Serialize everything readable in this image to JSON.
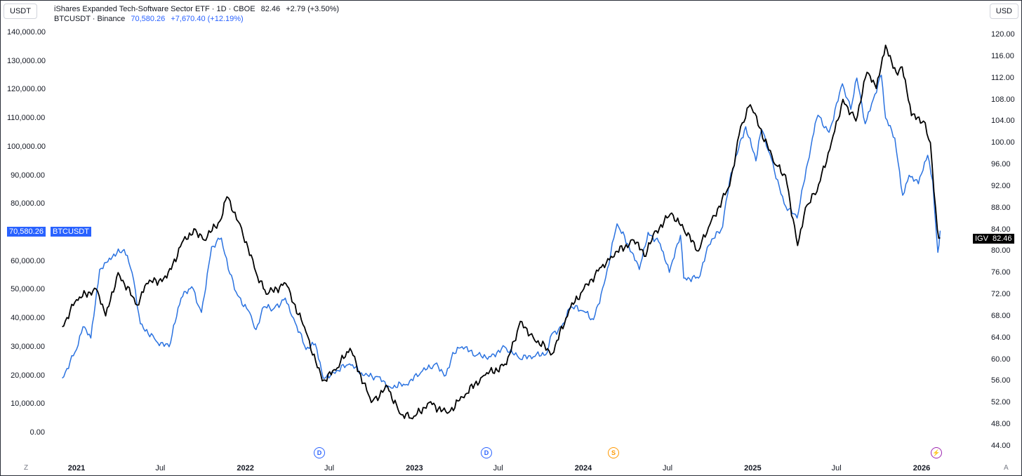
{
  "header": {
    "left_unit": "USDT",
    "right_unit": "USD",
    "series1_title": "iShares Expanded Tech-Software Sector ETF · 1D · CBOE",
    "series1_price": "82.46",
    "series1_change": "+2.79 (+3.50%)",
    "series2_title": "BTCUSDT · Binance",
    "series2_price": "70,580.26",
    "series2_change": "+7,670.40 (+12.19%)"
  },
  "axes": {
    "left_ticks": [
      "140,000.00",
      "130,000.00",
      "120,000.00",
      "110,000.00",
      "100,000.00",
      "90,000.00",
      "80,000.00",
      "60,000.00",
      "50,000.00",
      "40,000.00",
      "30,000.00",
      "20,000.00",
      "10,000.00",
      "0.00"
    ],
    "right_ticks": [
      "120.00",
      "116.00",
      "112.00",
      "108.00",
      "104.00",
      "100.00",
      "96.00",
      "92.00",
      "88.00",
      "84.00",
      "80.00",
      "76.00",
      "72.00",
      "68.00",
      "64.00",
      "60.00",
      "56.00",
      "52.00",
      "48.00",
      "44.00"
    ],
    "x_labels": [
      "2021",
      "Jul",
      "2022",
      "Jul",
      "2023",
      "Jul",
      "2024",
      "Jul",
      "2025",
      "Jul",
      "2026"
    ],
    "corner_left": "Z",
    "corner_right": "A"
  },
  "price_tags": {
    "btc_value": "70,580.26",
    "btc_symbol": "BTCUSDT",
    "igv_symbol": "IGV",
    "igv_value": "82.46"
  },
  "events": [
    {
      "letter": "D",
      "color": "#2962ff"
    },
    {
      "letter": "D",
      "color": "#2962ff"
    },
    {
      "letter": "S",
      "color": "#ff9800"
    },
    {
      "letter": "⚡",
      "color": "#9c27b0"
    }
  ],
  "colors": {
    "btc": "#2a72e0",
    "igv": "#000000"
  },
  "chart_data": {
    "type": "line",
    "xlim": [
      "2020-12",
      "2026-03"
    ],
    "series": [
      {
        "name": "BTCUSDT",
        "axis": "left",
        "x": [
          "2020-12-01",
          "2021-01-01",
          "2021-01-15",
          "2021-02-01",
          "2021-02-20",
          "2021-03-13",
          "2021-04-14",
          "2021-05-01",
          "2021-05-19",
          "2021-06-22",
          "2021-07-20",
          "2021-08-15",
          "2021-09-07",
          "2021-09-28",
          "2021-10-20",
          "2021-11-10",
          "2021-11-25",
          "2021-12-15",
          "2022-01-10",
          "2022-01-24",
          "2022-02-10",
          "2022-03-01",
          "2022-03-28",
          "2022-04-15",
          "2022-05-12",
          "2022-06-01",
          "2022-06-18",
          "2022-07-10",
          "2022-08-14",
          "2022-09-15",
          "2022-10-15",
          "2022-11-09",
          "2022-12-15",
          "2023-01-15",
          "2023-02-15",
          "2023-03-10",
          "2023-03-25",
          "2023-04-14",
          "2023-05-15",
          "2023-06-15",
          "2023-07-15",
          "2023-08-15",
          "2023-09-15",
          "2023-10-15",
          "2023-10-25",
          "2023-11-15",
          "2023-12-05",
          "2024-01-01",
          "2024-01-23",
          "2024-02-15",
          "2024-03-14",
          "2024-04-15",
          "2024-05-01",
          "2024-05-20",
          "2024-06-15",
          "2024-07-05",
          "2024-07-29",
          "2024-08-05",
          "2024-09-06",
          "2024-09-28",
          "2024-10-28",
          "2024-11-12",
          "2024-12-05",
          "2024-12-17",
          "2025-01-08",
          "2025-01-20",
          "2025-02-10",
          "2025-03-10",
          "2025-04-07",
          "2025-05-10",
          "2025-05-22",
          "2025-06-15",
          "2025-07-14",
          "2025-08-01",
          "2025-08-14",
          "2025-09-01",
          "2025-09-15",
          "2025-10-06",
          "2025-10-15",
          "2025-11-04",
          "2025-11-21",
          "2025-12-05",
          "2025-12-25",
          "2026-01-14",
          "2026-01-25",
          "2026-02-05",
          "2026-02-10"
        ],
        "values": [
          19000,
          29000,
          37000,
          33000,
          57000,
          61000,
          64000,
          56000,
          38000,
          32000,
          30000,
          47000,
          51000,
          42000,
          65000,
          68000,
          57000,
          48000,
          42000,
          36000,
          44000,
          43000,
          47000,
          40000,
          29000,
          31000,
          19000,
          21000,
          24000,
          20000,
          19500,
          16000,
          16800,
          21000,
          24000,
          20000,
          28000,
          30000,
          27000,
          26500,
          30000,
          26000,
          26500,
          28000,
          34500,
          37000,
          44000,
          42500,
          39500,
          52000,
          73000,
          63000,
          57000,
          70000,
          66000,
          56000,
          69000,
          54000,
          54000,
          65500,
          72000,
          88000,
          102000,
          107000,
          95000,
          106000,
          96000,
          80000,
          75000,
          103000,
          111000,
          105000,
          122000,
          113000,
          124000,
          108000,
          115000,
          125000,
          110000,
          103000,
          83000,
          90000,
          87000,
          97000,
          88000,
          63000,
          70580
        ]
      },
      {
        "name": "IGV",
        "axis": "right",
        "x": [
          "2020-12-01",
          "2021-01-01",
          "2021-02-12",
          "2021-03-05",
          "2021-04-01",
          "2021-05-12",
          "2021-06-01",
          "2021-07-15",
          "2021-08-20",
          "2021-09-15",
          "2021-10-04",
          "2021-11-10",
          "2021-11-22",
          "2021-12-20",
          "2022-01-24",
          "2022-02-15",
          "2022-03-29",
          "2022-05-12",
          "2022-06-16",
          "2022-07-15",
          "2022-08-15",
          "2022-09-30",
          "2022-11-04",
          "2022-11-30",
          "2022-12-28",
          "2023-02-02",
          "2023-03-13",
          "2023-04-15",
          "2023-05-31",
          "2023-07-19",
          "2023-08-18",
          "2023-09-15",
          "2023-10-26",
          "2023-12-01",
          "2024-01-02",
          "2024-02-09",
          "2024-03-01",
          "2024-04-19",
          "2024-05-15",
          "2024-05-31",
          "2024-07-10",
          "2024-08-05",
          "2024-09-06",
          "2024-10-01",
          "2024-11-12",
          "2024-12-06",
          "2024-12-27",
          "2025-02-18",
          "2025-03-13",
          "2025-04-08",
          "2025-04-25",
          "2025-05-20",
          "2025-06-20",
          "2025-07-15",
          "2025-08-12",
          "2025-09-05",
          "2025-09-25",
          "2025-10-15",
          "2025-11-07",
          "2025-11-20",
          "2025-12-10",
          "2026-01-05",
          "2026-01-20",
          "2026-02-04",
          "2026-02-10"
        ],
        "values": [
          66,
          71,
          73,
          68,
          76,
          70,
          74,
          75,
          82,
          84,
          82,
          86,
          90,
          85,
          76,
          72,
          74,
          65,
          56,
          58,
          62,
          52,
          55,
          50,
          49,
          52,
          50,
          53,
          57,
          59,
          67,
          64,
          61,
          69,
          73,
          77,
          79,
          82,
          79,
          83,
          87,
          84,
          80,
          85,
          92,
          103,
          107,
          96,
          94,
          81,
          88,
          91,
          100,
          108,
          104,
          113,
          110,
          118,
          113,
          114,
          105,
          104,
          100,
          84,
          82.46
        ]
      }
    ]
  }
}
